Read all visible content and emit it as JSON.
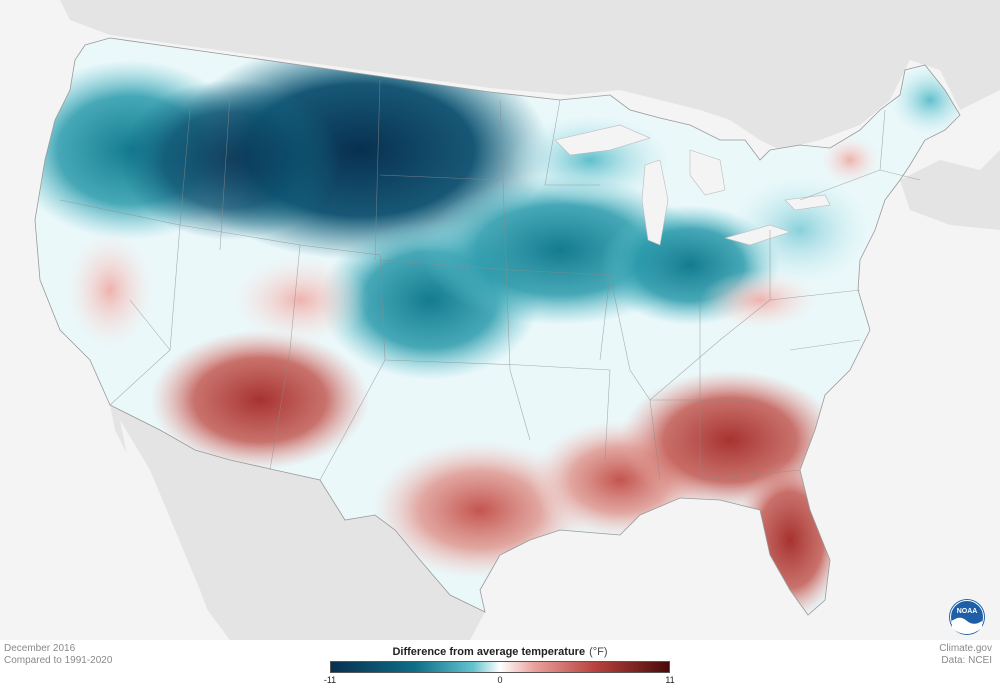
{
  "map": {
    "period": "December 2016",
    "comparison": "Compared to 1991-2020",
    "credit_site": "Climate.gov",
    "credit_data": "Data: NCEI",
    "logo_text": "NOAA"
  },
  "legend": {
    "title": "Difference from average temperature",
    "unit": "(°F)",
    "min_label": "-11",
    "mid_label": "0",
    "max_label": "11",
    "min_value": -11,
    "max_value": 11,
    "colors": {
      "very_cold": "#08304f",
      "cold": "#0f6e86",
      "cool": "#63c3cf",
      "neutral": "#ffffff",
      "warm": "#eaa29d",
      "hot": "#b8433e",
      "very_hot": "#4a0a0a"
    }
  }
}
